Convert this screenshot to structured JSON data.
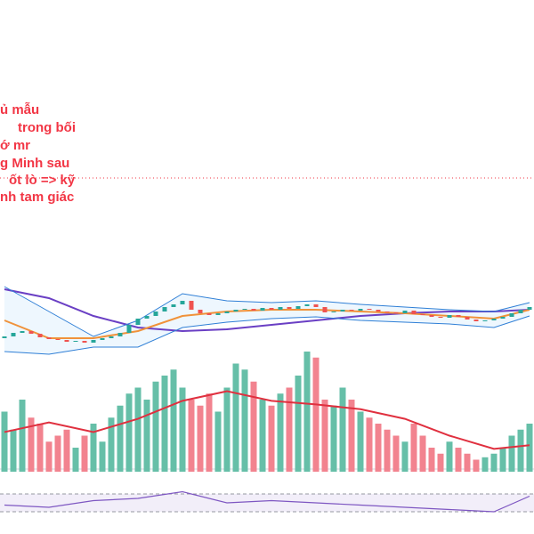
{
  "chart_data": {
    "type": "candlestick",
    "annotation": [
      "ủ mẫu",
      "trong bối",
      "ớ mr",
      "g Minh sau",
      "ốt lò => kỹ",
      "nh tam giác"
    ],
    "level": 400,
    "ylim": [
      0,
      600
    ],
    "open": [
      220,
      222,
      226,
      228,
      225,
      221,
      219,
      218,
      216,
      217,
      215,
      218,
      220,
      222,
      226,
      235,
      242,
      245,
      250,
      255,
      258,
      262,
      252,
      248,
      246,
      248,
      250,
      252,
      253,
      251,
      254,
      252,
      255,
      253,
      256,
      258,
      255,
      249,
      250,
      252,
      251,
      253,
      252,
      250,
      249,
      248,
      251,
      247,
      246,
      244,
      243,
      246,
      244,
      241,
      239,
      240,
      242,
      244,
      248,
      252
    ],
    "close": [
      222,
      226,
      228,
      225,
      221,
      219,
      218,
      216,
      217,
      215,
      218,
      220,
      222,
      226,
      235,
      242,
      245,
      250,
      255,
      258,
      262,
      252,
      248,
      246,
      248,
      250,
      252,
      253,
      251,
      254,
      252,
      255,
      253,
      256,
      258,
      255,
      249,
      250,
      252,
      251,
      253,
      252,
      250,
      249,
      248,
      251,
      247,
      246,
      244,
      243,
      246,
      244,
      241,
      239,
      240,
      242,
      244,
      248,
      252,
      255
    ],
    "line_x": [
      0,
      5,
      10,
      15,
      20,
      25,
      30,
      35,
      40,
      45,
      50,
      55,
      59
    ],
    "series": [
      {
        "name": null,
        "role": "ma-slow",
        "color": "#6a3fc4",
        "values": [
          275,
          265,
          245,
          232,
          228,
          230,
          235,
          240,
          245,
          248,
          250,
          250,
          252
        ]
      },
      {
        "name": null,
        "role": "ma-fast",
        "color": "#f0923a",
        "values": [
          240,
          220,
          220,
          228,
          245,
          250,
          252,
          252,
          250,
          248,
          245,
          242,
          252
        ]
      },
      {
        "name": null,
        "role": "bb-upper",
        "color": "#2f7fd6",
        "values": [
          278,
          250,
          222,
          240,
          270,
          262,
          260,
          262,
          258,
          255,
          252,
          250,
          260
        ]
      },
      {
        "name": null,
        "role": "bb-lower",
        "color": "#2f7fd6",
        "values": [
          205,
          202,
          210,
          210,
          232,
          238,
          242,
          244,
          240,
          238,
          236,
          232,
          245
        ]
      }
    ],
    "volume": {
      "ylim": [
        0,
        100
      ],
      "values": [
        50,
        35,
        60,
        45,
        40,
        25,
        30,
        35,
        20,
        30,
        40,
        25,
        45,
        55,
        65,
        70,
        60,
        75,
        80,
        85,
        70,
        60,
        55,
        65,
        50,
        70,
        90,
        85,
        75,
        60,
        55,
        65,
        70,
        80,
        100,
        95,
        60,
        55,
        70,
        60,
        50,
        45,
        40,
        35,
        30,
        25,
        40,
        30,
        20,
        15,
        25,
        20,
        15,
        10,
        12,
        15,
        20,
        30,
        35,
        40
      ],
      "ma": {
        "color": "#e0303f",
        "values": [
          33,
          41,
          33,
          44,
          59,
          67,
          59,
          56,
          52,
          44,
          30,
          19,
          22
        ]
      }
    },
    "rsi": {
      "ylim": [
        0,
        100
      ],
      "band": [
        30,
        70
      ],
      "color": "#7e57c2",
      "values": [
        45,
        40,
        55,
        60,
        75,
        50,
        55,
        50,
        45,
        40,
        35,
        30,
        65
      ]
    }
  }
}
